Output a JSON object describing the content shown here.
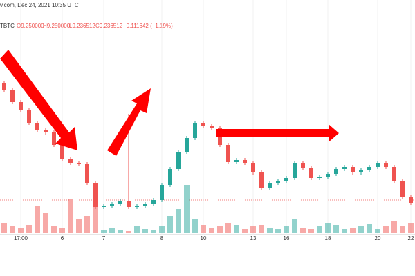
{
  "chart_data": {
    "type": "candlestick",
    "header": {
      "source": "v.com, Dec 24, 2021 10:35 UTC",
      "symbol": "TBTC",
      "open": "O9.250000",
      "high": "H9.250000",
      "low": "L9.236512",
      "close": "C9.236512",
      "change": "−0.111642 (−1.19%)"
    },
    "categories": [
      null,
      null,
      "17:00",
      null,
      null,
      null,
      null,
      "6",
      null,
      null,
      null,
      null,
      "7",
      null,
      null,
      null,
      null,
      null,
      null,
      "8",
      null,
      null,
      null,
      null,
      "10",
      null,
      null,
      null,
      null,
      null,
      "13",
      null,
      null,
      null,
      "16",
      null,
      null,
      null,
      null,
      "18",
      null,
      null,
      null,
      null,
      null,
      "20",
      null,
      null,
      null,
      "22"
    ],
    "open": [
      10.99,
      10.89,
      10.71,
      10.59,
      10.41,
      10.31,
      10.27,
      10.09,
      9.89,
      9.83,
      9.81,
      9.54,
      9.19,
      9.21,
      9.23,
      9.27,
      9.19,
      9.21,
      9.23,
      9.29,
      9.51,
      9.74,
      9.99,
      10.19,
      10.41,
      10.37,
      10.34,
      10.09,
      9.84,
      9.87,
      9.83,
      9.69,
      9.47,
      9.54,
      9.57,
      9.61,
      9.83,
      9.75,
      9.61,
      9.63,
      9.67,
      9.74,
      9.77,
      9.69,
      9.73,
      9.77,
      9.83,
      9.77,
      9.57,
      9.34
    ],
    "high": [
      11.02,
      10.92,
      10.74,
      10.62,
      10.44,
      10.34,
      10.3,
      10.12,
      9.92,
      9.86,
      9.84,
      9.57,
      9.24,
      9.26,
      9.3,
      10.54,
      9.24,
      9.26,
      9.32,
      9.54,
      9.77,
      10.02,
      10.22,
      10.44,
      10.44,
      10.4,
      10.37,
      10.12,
      9.9,
      9.9,
      9.86,
      9.72,
      9.57,
      9.6,
      9.64,
      9.86,
      9.86,
      9.78,
      9.66,
      9.7,
      9.77,
      9.8,
      9.8,
      9.76,
      9.8,
      9.86,
      9.86,
      9.8,
      9.6,
      9.37
    ],
    "low": [
      10.86,
      10.68,
      10.56,
      10.38,
      10.28,
      10.24,
      10.06,
      9.86,
      9.8,
      9.78,
      9.51,
      9.16,
      9.16,
      9.18,
      9.2,
      9.16,
      9.16,
      9.18,
      9.2,
      9.26,
      9.48,
      9.71,
      9.96,
      10.16,
      10.34,
      10.31,
      10.06,
      9.81,
      9.81,
      9.8,
      9.66,
      9.44,
      9.44,
      9.51,
      9.54,
      9.58,
      9.72,
      9.58,
      9.58,
      9.6,
      9.64,
      9.71,
      9.66,
      9.66,
      9.7,
      9.74,
      9.74,
      9.54,
      9.31,
      9.22
    ],
    "close": [
      10.89,
      10.71,
      10.59,
      10.41,
      10.31,
      10.27,
      10.09,
      9.89,
      9.83,
      9.81,
      9.54,
      9.19,
      9.21,
      9.23,
      9.27,
      9.19,
      9.21,
      9.23,
      9.29,
      9.51,
      9.74,
      9.99,
      10.19,
      10.41,
      10.37,
      10.34,
      10.09,
      9.84,
      9.87,
      9.83,
      9.69,
      9.47,
      9.54,
      9.57,
      9.61,
      9.83,
      9.75,
      9.61,
      9.63,
      9.67,
      9.74,
      9.77,
      9.69,
      9.73,
      9.77,
      9.83,
      9.77,
      9.57,
      9.34,
      9.25
    ],
    "volume": [
      15,
      10,
      8,
      12,
      40,
      30,
      10,
      8,
      50,
      20,
      25,
      45,
      5,
      8,
      5,
      3,
      10,
      6,
      5,
      10,
      25,
      35,
      70,
      20,
      12,
      8,
      10,
      15,
      12,
      6,
      10,
      12,
      8,
      6,
      10,
      20,
      8,
      6,
      10,
      15,
      12,
      6,
      8,
      10,
      14,
      6,
      10,
      18,
      10,
      15
    ],
    "up_color": "#26a69a",
    "down_color": "#ef5350",
    "ylim": [
      8.89,
      12.19
    ],
    "grid": true
  }
}
